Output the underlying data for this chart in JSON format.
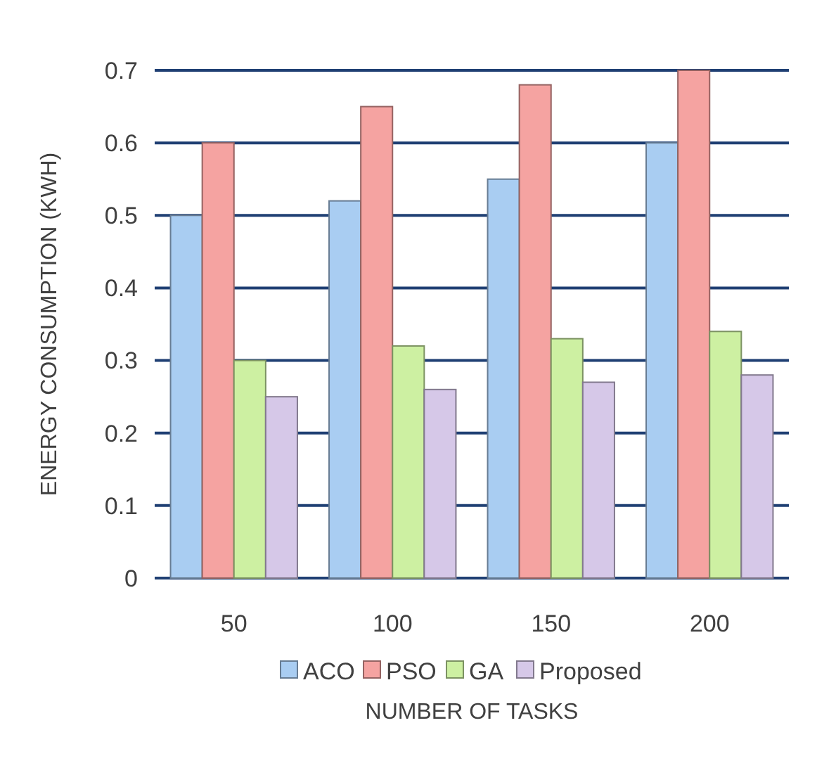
{
  "chart_data": {
    "type": "bar",
    "xlabel": "NUMBER OF TASKS",
    "ylabel": "ENERGY CONSUMPTION (KWH)",
    "categories": [
      "50",
      "100",
      "150",
      "200"
    ],
    "series": [
      {
        "name": "ACO",
        "color": "#a9cdf2",
        "values": [
          0.5,
          0.52,
          0.55,
          0.6
        ]
      },
      {
        "name": "PSO",
        "color": "#f5a3a1",
        "values": [
          0.6,
          0.65,
          0.68,
          0.7
        ]
      },
      {
        "name": "GA",
        "color": "#cdf0a2",
        "values": [
          0.3,
          0.32,
          0.33,
          0.34
        ]
      },
      {
        "name": "Proposed",
        "color": "#d6c8e8",
        "values": [
          0.25,
          0.26,
          0.27,
          0.28
        ]
      }
    ],
    "ylim": [
      0,
      0.7
    ],
    "yticks": [
      0,
      0.1,
      0.2,
      0.3,
      0.4,
      0.5,
      0.6,
      0.7
    ],
    "grid": "y",
    "legend": "bottom"
  }
}
